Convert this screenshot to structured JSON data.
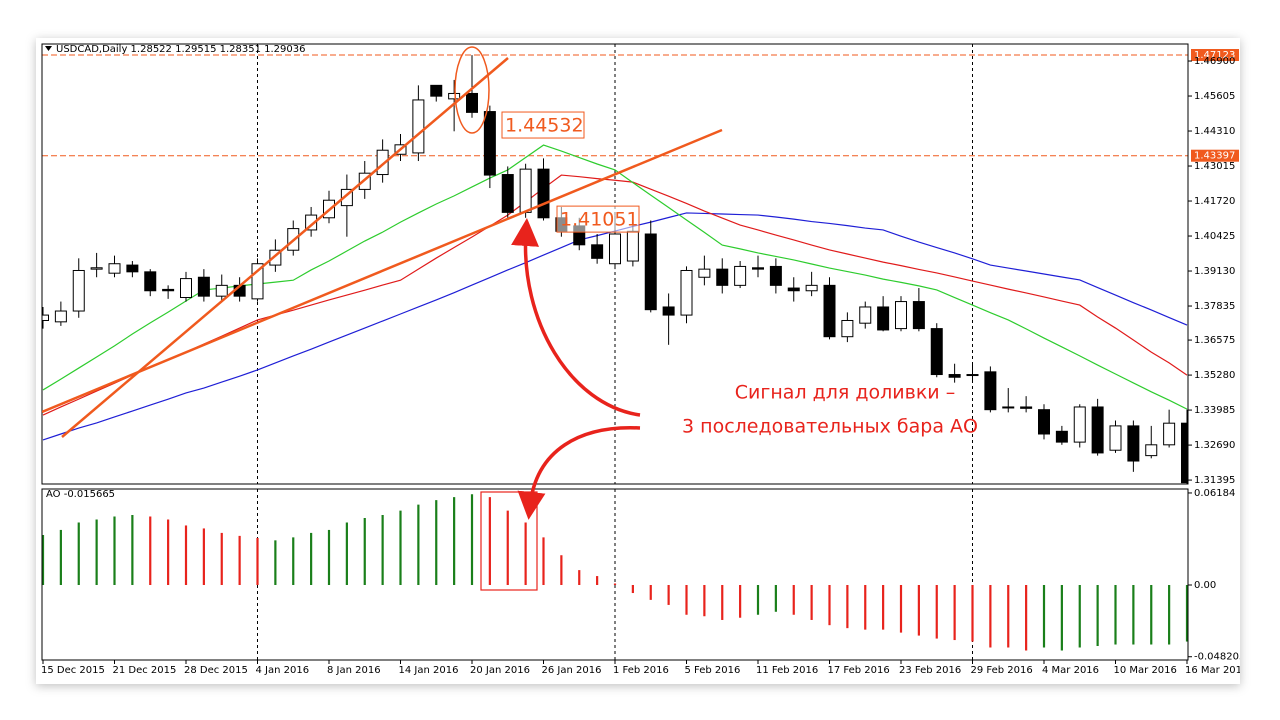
{
  "chart_data": [
    {
      "type": "candlestick",
      "title": "USDCAD,Daily  1.28522 1.29515 1.28351 1.29036",
      "categories": [
        "15 Dec 2015",
        null,
        null,
        null,
        "21 Dec 2015",
        null,
        null,
        null,
        "28 Dec 2015",
        null,
        null,
        null,
        "4 Jan 2016",
        null,
        null,
        null,
        "8 Jan 2016",
        null,
        null,
        null,
        "14 Jan 2016",
        null,
        null,
        null,
        "20 Jan 2016",
        null,
        null,
        null,
        "26 Jan 2016",
        null,
        null,
        null,
        "1 Feb 2016",
        null,
        null,
        null,
        "5 Feb 2016",
        null,
        null,
        null,
        "11 Feb 2016",
        null,
        null,
        null,
        "17 Feb 2016",
        null,
        null,
        null,
        "23 Feb 2016",
        null,
        null,
        null,
        "29 Feb 2016",
        null,
        null,
        null,
        "4 Mar 2016",
        null,
        null,
        null,
        "10 Mar 2016",
        null,
        null,
        null,
        "16 Mar 2016"
      ],
      "open": [
        1.373,
        1.3725,
        1.3765,
        1.392,
        1.3905,
        1.3935,
        1.391,
        1.3845,
        1.3815,
        1.389,
        1.382,
        1.386,
        1.381,
        1.3935,
        1.399,
        1.4065,
        1.411,
        1.4155,
        1.4215,
        1.427,
        1.4345,
        1.435,
        1.46,
        1.455,
        1.457,
        1.4503,
        1.427,
        1.413,
        1.429,
        1.411,
        1.408,
        1.401,
        1.394,
        1.395,
        1.405,
        1.378,
        1.375,
        1.389,
        1.392,
        1.386,
        1.3925,
        1.393,
        1.385,
        1.384,
        1.386,
        1.367,
        1.372,
        1.378,
        1.37,
        1.38,
        1.37,
        1.353,
        1.353,
        1.354,
        1.341,
        1.341,
        1.34,
        1.332,
        1.328,
        1.341,
        1.325,
        1.334,
        1.323,
        1.327,
        1.335
      ],
      "high": [
        1.378,
        1.38,
        1.396,
        1.398,
        1.397,
        1.395,
        1.392,
        1.386,
        1.391,
        1.392,
        1.39,
        1.389,
        1.396,
        1.403,
        1.41,
        1.415,
        1.421,
        1.427,
        1.432,
        1.44,
        1.442,
        1.46,
        1.46,
        1.462,
        1.4712,
        1.4525,
        1.43,
        1.431,
        1.433,
        1.415,
        1.411,
        1.405,
        1.412,
        1.41,
        1.41,
        1.383,
        1.393,
        1.397,
        1.396,
        1.395,
        1.397,
        1.396,
        1.389,
        1.391,
        1.389,
        1.376,
        1.38,
        1.382,
        1.382,
        1.385,
        1.372,
        1.357,
        1.357,
        1.356,
        1.348,
        1.345,
        1.342,
        1.334,
        1.342,
        1.344,
        1.336,
        1.336,
        1.334,
        1.34,
        1.34
      ],
      "low": [
        1.37,
        1.371,
        1.374,
        1.389,
        1.389,
        1.389,
        1.382,
        1.381,
        1.38,
        1.38,
        1.38,
        1.38,
        1.38,
        1.391,
        1.397,
        1.404,
        1.409,
        1.404,
        1.418,
        1.424,
        1.432,
        1.432,
        1.454,
        1.443,
        1.448,
        1.422,
        1.411,
        1.411,
        1.41,
        1.404,
        1.399,
        1.394,
        1.392,
        1.393,
        1.376,
        1.364,
        1.372,
        1.386,
        1.383,
        1.385,
        1.389,
        1.383,
        1.38,
        1.382,
        1.366,
        1.365,
        1.37,
        1.369,
        1.369,
        1.369,
        1.352,
        1.35,
        1.35,
        1.339,
        1.339,
        1.339,
        1.329,
        1.327,
        1.326,
        1.323,
        1.324,
        1.317,
        1.322,
        1.326,
        1.312
      ],
      "close": [
        1.375,
        1.3765,
        1.3915,
        1.3925,
        1.394,
        1.391,
        1.384,
        1.384,
        1.3885,
        1.382,
        1.386,
        1.382,
        1.394,
        1.399,
        1.407,
        1.412,
        1.4175,
        1.4215,
        1.4275,
        1.436,
        1.438,
        1.4546,
        1.456,
        1.457,
        1.45,
        1.4268,
        1.413,
        1.429,
        1.411,
        1.406,
        1.401,
        1.396,
        1.405,
        1.406,
        1.377,
        1.375,
        1.3915,
        1.392,
        1.386,
        1.393,
        1.392,
        1.386,
        1.384,
        1.386,
        1.367,
        1.373,
        1.378,
        1.3695,
        1.38,
        1.37,
        1.353,
        1.352,
        1.353,
        1.34,
        1.341,
        1.3405,
        1.331,
        1.328,
        1.341,
        1.324,
        1.334,
        1.321,
        1.327,
        1.335,
        1.313
      ],
      "up_color": "#ffffff",
      "down_color": "#000000",
      "series": [
        {
          "color": "#1f1fd6",
          "values": [
            1.3288,
            1.331,
            1.3332,
            1.3351,
            1.3373,
            1.3395,
            1.3417,
            1.3439,
            1.3462,
            1.348,
            1.3502,
            1.3524,
            1.3547,
            1.3573,
            1.3599,
            1.3624,
            1.365,
            1.3676,
            1.3702,
            1.3728,
            1.3754,
            1.378,
            1.3806,
            1.3833,
            1.3861,
            1.3889,
            1.3917,
            1.3944,
            1.3972,
            1.4,
            1.4028,
            1.4044,
            1.4061,
            1.4078,
            1.4094,
            1.4111,
            1.4128,
            1.4126,
            1.4124,
            1.4122,
            1.412,
            1.4113,
            1.4105,
            1.4096,
            1.4089,
            1.4081,
            1.4072,
            1.4065,
            1.4042,
            1.402,
            1.4,
            1.398,
            1.3958,
            1.3935,
            1.3924,
            1.3913,
            1.3902,
            1.3891,
            1.388,
            1.3852,
            1.3824,
            1.3796,
            1.3769,
            1.3741,
            1.3713
          ]
        },
        {
          "color": "#e01b1b",
          "values": [
            1.338,
            1.341,
            1.3439,
            1.3469,
            1.3498,
            1.3528,
            1.3558,
            1.3584,
            1.3613,
            1.3643,
            1.3672,
            1.3702,
            1.3732,
            1.375,
            1.3768,
            1.3787,
            1.3806,
            1.3824,
            1.3842,
            1.3861,
            1.3879,
            1.392,
            1.3961,
            1.4,
            1.4039,
            1.4079,
            1.412,
            1.4169,
            1.4219,
            1.4268,
            1.4262,
            1.4255,
            1.4249,
            1.4242,
            1.4216,
            1.419,
            1.4163,
            1.4135,
            1.4109,
            1.4083,
            1.4065,
            1.4046,
            1.4028,
            1.4009,
            1.3991,
            1.3976,
            1.3961,
            1.3946,
            1.3933,
            1.3919,
            1.3906,
            1.3891,
            1.3876,
            1.3861,
            1.3846,
            1.3832,
            1.3817,
            1.3802,
            1.3787,
            1.3743,
            1.3702,
            1.3658,
            1.3613,
            1.3573,
            1.3528
          ]
        },
        {
          "color": "#2ecc2e",
          "values": [
            1.3473,
            1.3513,
            1.3554,
            1.3595,
            1.3636,
            1.368,
            1.3721,
            1.3761,
            1.3802,
            1.3843,
            1.385,
            1.3858,
            1.3865,
            1.3872,
            1.3879,
            1.3917,
            1.395,
            1.3987,
            1.4024,
            1.4057,
            1.4094,
            1.4128,
            1.4161,
            1.4191,
            1.4224,
            1.4257,
            1.4287,
            1.4333,
            1.4379,
            1.4357,
            1.4333,
            1.4309,
            1.4287,
            1.424,
            1.4194,
            1.4148,
            1.4102,
            1.4056,
            1.4009,
            1.3995,
            1.398,
            1.3967,
            1.3954,
            1.3939,
            1.3924,
            1.3911,
            1.3898,
            1.3883,
            1.3871,
            1.3858,
            1.3843,
            1.3815,
            1.3787,
            1.3759,
            1.3732,
            1.3699,
            1.3665,
            1.3632,
            1.3599,
            1.3565,
            1.3532,
            1.3499,
            1.3466,
            1.3435,
            1.3402
          ]
        }
      ],
      "ylim": [
        1.3125,
        1.4753
      ],
      "yticks": [
        {
          "value": 1.469,
          "label": "1.46900"
        },
        1.45605,
        {
          "value": 1.4431,
          "label": "1.44310"
        },
        1.43015,
        {
          "value": 1.4172,
          "label": "1.41720"
        },
        1.40425,
        {
          "value": 1.3913,
          "label": "1.39130"
        },
        1.37835,
        1.36575,
        {
          "value": 1.3528,
          "label": "1.35280"
        },
        1.33985,
        {
          "value": 1.3269,
          "label": "1.32690"
        },
        1.31395
      ],
      "levels": [
        1.47123,
        1.43397
      ],
      "level_color": "#f05a1e",
      "price_labels": [
        1.44532,
        1.41051
      ],
      "grid": false
    },
    {
      "type": "bar",
      "title": "AO -0.015665",
      "values": [
        0.0336,
        0.037,
        0.042,
        0.044,
        0.046,
        0.047,
        0.046,
        0.044,
        0.04,
        0.038,
        0.035,
        0.033,
        0.0316,
        0.03,
        0.032,
        0.035,
        0.037,
        0.042,
        0.045,
        0.047,
        0.05,
        0.054,
        0.057,
        0.059,
        0.061,
        0.059,
        0.05,
        0.042,
        0.032,
        0.02,
        0.01,
        0.006,
        0.001,
        -0.0054,
        -0.01,
        -0.0134,
        -0.02,
        -0.021,
        -0.0235,
        -0.022,
        -0.02,
        -0.018,
        -0.02,
        -0.0235,
        -0.027,
        -0.029,
        -0.03,
        -0.03,
        -0.032,
        -0.034,
        -0.036,
        -0.037,
        -0.038,
        -0.042,
        -0.042,
        -0.044,
        -0.042,
        -0.044,
        -0.042,
        -0.041,
        -0.04,
        -0.04,
        -0.04,
        -0.04,
        -0.038
      ],
      "colors": [
        "#1a7f1a",
        "#1a7f1a",
        "#1a7f1a",
        "#1a7f1a",
        "#1a7f1a",
        "#1a7f1a",
        "#e8231c",
        "#e8231c",
        "#e8231c",
        "#e8231c",
        "#e8231c",
        "#e8231c",
        "#e8231c",
        "#1a7f1a",
        "#1a7f1a",
        "#1a7f1a",
        "#1a7f1a",
        "#1a7f1a",
        "#1a7f1a",
        "#1a7f1a",
        "#1a7f1a",
        "#1a7f1a",
        "#1a7f1a",
        "#1a7f1a",
        "#1a7f1a",
        "#e8231c",
        "#e8231c",
        "#e8231c",
        "#e8231c",
        "#e8231c",
        "#e8231c",
        "#e8231c",
        "#e8231c",
        "#e8231c",
        "#e8231c",
        "#e8231c",
        "#e8231c",
        "#e8231c",
        "#e8231c",
        "#e8231c",
        "#1a7f1a",
        "#1a7f1a",
        "#e8231c",
        "#e8231c",
        "#e8231c",
        "#e8231c",
        "#e8231c",
        "#e8231c",
        "#e8231c",
        "#e8231c",
        "#e8231c",
        "#e8231c",
        "#e8231c",
        "#e8231c",
        "#e8231c",
        "#e8231c",
        "#1a7f1a",
        "#1a7f1a",
        "#1a7f1a",
        "#1a7f1a",
        "#1a7f1a",
        "#1a7f1a",
        "#1a7f1a",
        "#1a7f1a",
        "#1a7f1a"
      ],
      "ylim": [
        -0.0504,
        0.0645
      ],
      "yticks": [
        0.06184,
        {
          "value": 0,
          "label": "0.00"
        },
        -0.048205
      ]
    }
  ],
  "annotations": [
    "Сигнал для доливки –",
    "3 последовательных бара АО"
  ]
}
